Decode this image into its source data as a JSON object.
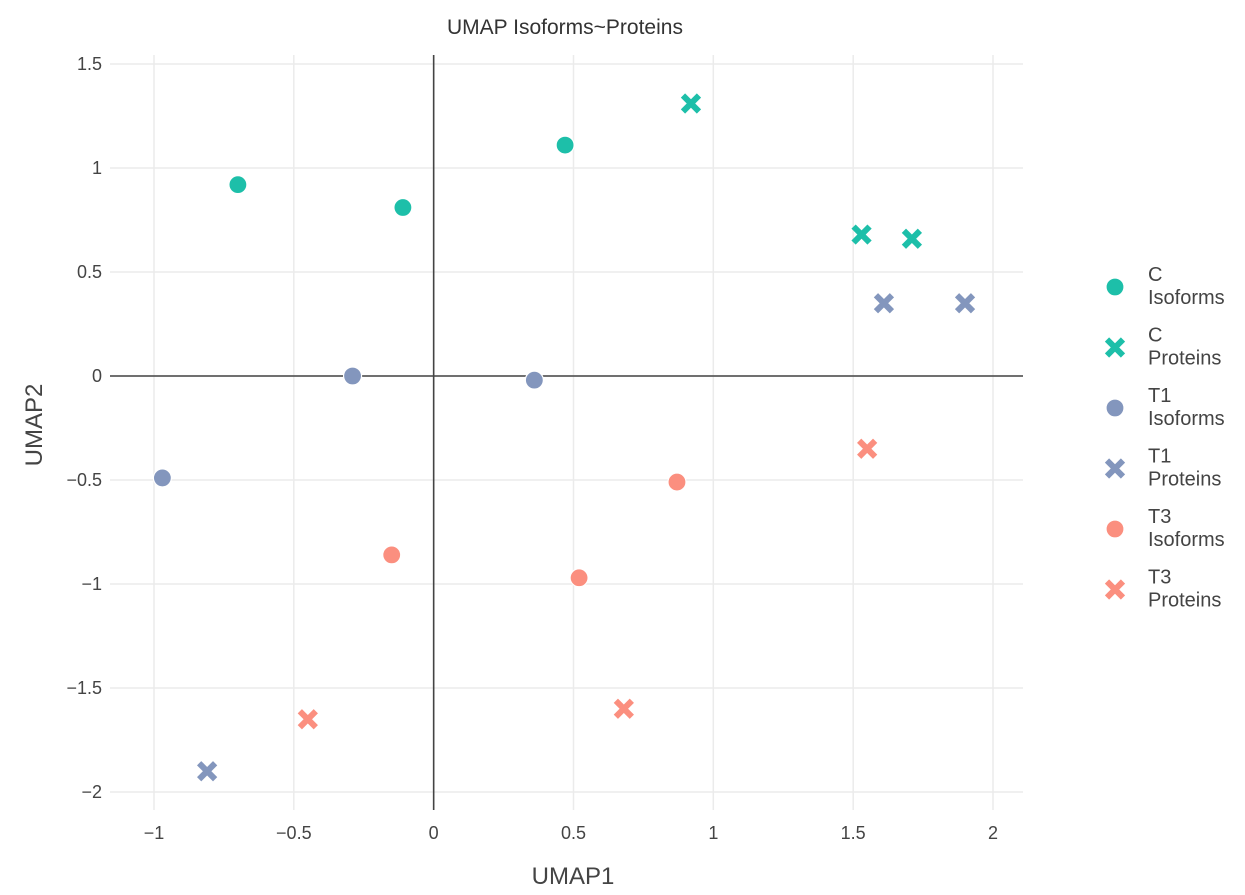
{
  "chart_data": {
    "type": "scatter",
    "title": "UMAP Isoforms~Proteins",
    "xlabel": "UMAP1",
    "ylabel": "UMAP2",
    "xlim": [
      -1.15,
      2.1
    ],
    "ylim": [
      -2.15,
      1.55
    ],
    "x_ticks": [
      -1,
      -0.5,
      0,
      0.5,
      1,
      1.5,
      2
    ],
    "x_tick_labels": [
      "−1",
      "−0.5",
      "0",
      "0.5",
      "1",
      "1.5",
      "2"
    ],
    "y_ticks": [
      -2,
      -1.5,
      -1,
      -0.5,
      0,
      0.5,
      1,
      1.5
    ],
    "y_tick_labels": [
      "−2",
      "−1.5",
      "−1",
      "−0.5",
      "0",
      "0.5",
      "1",
      "1.5"
    ],
    "grid": true,
    "zero_lines": true,
    "legend_position": "right",
    "series": [
      {
        "name": "C Isoforms",
        "legend_lines": [
          "C",
          "Isoforms"
        ],
        "marker": "circle",
        "color": "#1dbfa9",
        "points": [
          [
            -0.7,
            0.92
          ],
          [
            -0.11,
            0.81
          ],
          [
            0.47,
            1.11
          ]
        ]
      },
      {
        "name": "C Proteins",
        "legend_lines": [
          "C",
          "Proteins"
        ],
        "marker": "x",
        "color": "#1dbfa9",
        "points": [
          [
            0.92,
            1.31
          ],
          [
            1.53,
            0.68
          ],
          [
            1.71,
            0.66
          ]
        ]
      },
      {
        "name": "T1 Isoforms",
        "legend_lines": [
          "T1",
          "Isoforms"
        ],
        "marker": "circle",
        "color": "#8396bd",
        "points": [
          [
            -0.97,
            -0.49
          ],
          [
            -0.29,
            0.0
          ],
          [
            0.36,
            -0.02
          ]
        ]
      },
      {
        "name": "T1 Proteins",
        "legend_lines": [
          "T1",
          "Proteins"
        ],
        "marker": "x",
        "color": "#8396bd",
        "points": [
          [
            1.61,
            0.35
          ],
          [
            1.9,
            0.35
          ],
          [
            -0.81,
            -1.9
          ]
        ]
      },
      {
        "name": "T3 Isoforms",
        "legend_lines": [
          "T3",
          "Isoforms"
        ],
        "marker": "circle",
        "color": "#fb8f7f",
        "points": [
          [
            0.87,
            -0.51
          ],
          [
            -0.15,
            -0.86
          ],
          [
            0.52,
            -0.97
          ]
        ]
      },
      {
        "name": "T3 Proteins",
        "legend_lines": [
          "T3",
          "Proteins"
        ],
        "marker": "x",
        "color": "#fb8f7f",
        "points": [
          [
            1.55,
            -0.35
          ],
          [
            0.68,
            -1.6
          ],
          [
            -0.45,
            -1.65
          ]
        ]
      }
    ]
  }
}
